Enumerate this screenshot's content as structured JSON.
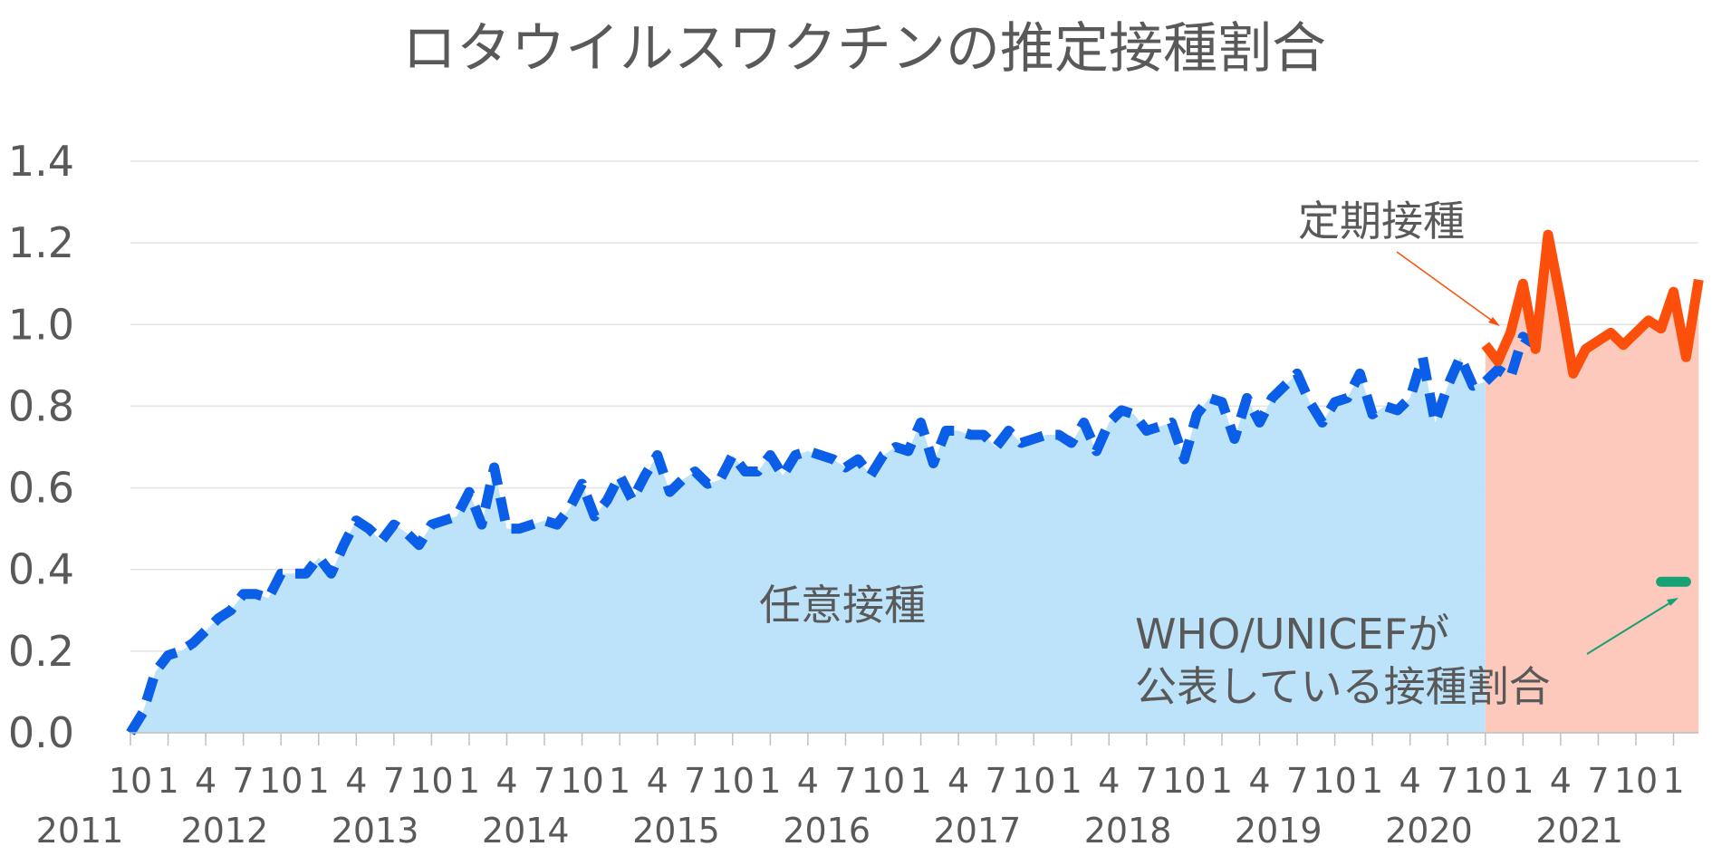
{
  "chart_data": {
    "type": "line",
    "title": "ロタウイルスワクチンの推定接種割合",
    "xlabel": "",
    "ylabel": "",
    "ylim": [
      0,
      1.4
    ],
    "yticks": [
      "0.0",
      "0.2",
      "0.4",
      "0.6",
      "0.8",
      "1.0",
      "1.2",
      "1.4"
    ],
    "grid": true,
    "x_start": "2011-10",
    "x_end": "2022-02",
    "month_ticks": [
      "10",
      "1",
      "4",
      "7",
      "10",
      "1",
      "4",
      "7",
      "10",
      "1",
      "4",
      "7",
      "10",
      "1",
      "4",
      "7",
      "10",
      "1",
      "4",
      "7",
      "10",
      "1",
      "4",
      "7",
      "10",
      "1",
      "4",
      "7",
      "10",
      "1",
      "4",
      "7",
      "10",
      "1",
      "4",
      "7",
      "10",
      "1",
      "4",
      "7",
      "10",
      "1"
    ],
    "year_labels": [
      "2011",
      "2012",
      "2013",
      "2014",
      "2015",
      "2016",
      "2017",
      "2018",
      "2019",
      "2020",
      "2021"
    ],
    "series": [
      {
        "name": "任意接種",
        "style": "dashed",
        "color": "#0a5ee8",
        "area_color": "#bde3fa",
        "x_start": "2011-10",
        "values": [
          0.0,
          0.05,
          0.15,
          0.19,
          0.2,
          0.22,
          0.25,
          0.28,
          0.3,
          0.34,
          0.34,
          0.33,
          0.39,
          0.39,
          0.39,
          0.43,
          0.39,
          0.46,
          0.52,
          0.5,
          0.47,
          0.51,
          0.49,
          0.46,
          0.51,
          0.52,
          0.53,
          0.59,
          0.51,
          0.65,
          0.5,
          0.5,
          0.51,
          0.52,
          0.51,
          0.55,
          0.61,
          0.53,
          0.57,
          0.63,
          0.57,
          0.63,
          0.68,
          0.59,
          0.62,
          0.64,
          0.61,
          0.62,
          0.68,
          0.64,
          0.64,
          0.68,
          0.63,
          0.68,
          0.69,
          0.68,
          0.67,
          0.65,
          0.67,
          0.63,
          0.68,
          0.7,
          0.69,
          0.76,
          0.66,
          0.74,
          0.74,
          0.73,
          0.73,
          0.7,
          0.74,
          0.71,
          0.72,
          0.73,
          0.73,
          0.71,
          0.76,
          0.69,
          0.76,
          0.79,
          0.78,
          0.74,
          0.75,
          0.76,
          0.67,
          0.78,
          0.82,
          0.81,
          0.72,
          0.82,
          0.76,
          0.82,
          0.85,
          0.88,
          0.81,
          0.76,
          0.81,
          0.82,
          0.88,
          0.78,
          0.8,
          0.79,
          0.82,
          0.92,
          0.76,
          0.85,
          0.92,
          0.85,
          0.86,
          0.89,
          0.87,
          0.97,
          0.95
        ]
      },
      {
        "name": "定期接種",
        "style": "solid",
        "color": "#fd4f0c",
        "area_color": "#fdc9bc",
        "x_start": "2020-10",
        "values": [
          0.95,
          0.91,
          0.98,
          1.1,
          0.94,
          1.22,
          1.06,
          0.88,
          0.94,
          0.96,
          0.98,
          0.95,
          0.98,
          1.01,
          0.99,
          1.08,
          0.92,
          1.11
        ]
      },
      {
        "name": "WHO/UNICEFが公表している接種割合",
        "style": "solid",
        "color": "#17a276",
        "x": [
          "2021-12",
          "2022-02"
        ],
        "values": [
          0.37,
          0.37
        ]
      }
    ],
    "annotations": {
      "regular": "定期接種",
      "voluntary": "任意接種",
      "who_line1": "WHO/UNICEFが",
      "who_line2": "公表している接種割合"
    }
  }
}
